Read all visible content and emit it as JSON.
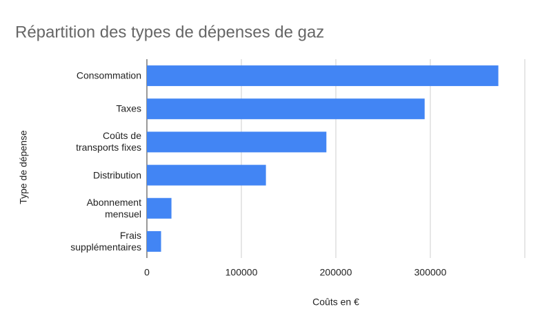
{
  "chart_data": {
    "type": "bar",
    "orientation": "horizontal",
    "title": "Répartition des types de dépenses de gaz",
    "x_label": "Coûts en €",
    "y_label": "Type de dépense",
    "categories": [
      "Consommation",
      "Taxes",
      "Coûts de transports fixes",
      "Distribution",
      "Abonnement mensuel",
      "Frais supplémentaires"
    ],
    "values": [
      372000,
      294000,
      190000,
      126000,
      26000,
      15000
    ],
    "color": "#4285f4",
    "xlim": [
      0,
      400000
    ],
    "xticks": [
      0,
      100000,
      200000,
      300000
    ],
    "grid": true
  }
}
